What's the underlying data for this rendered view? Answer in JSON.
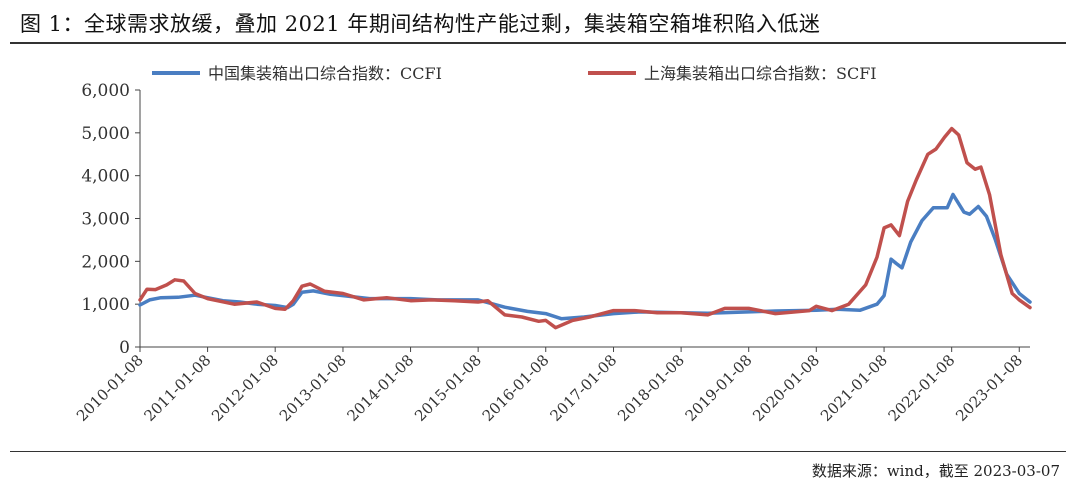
{
  "title": "图 1：全球需求放缓，叠加 2021 年期间结构性产能过剩，集装箱空箱堆积陷入低迷",
  "source": "数据来源：wind，截至 2023-03-07",
  "chart_data": {
    "type": "line",
    "title": "",
    "xlabel": "",
    "ylabel": "",
    "ylim": [
      0,
      6000
    ],
    "yticks": [
      0,
      1000,
      2000,
      3000,
      4000,
      5000,
      6000
    ],
    "ytick_labels": [
      "0",
      "1,000",
      "2,000",
      "3,000",
      "4,000",
      "5,000",
      "6,000"
    ],
    "xticks": [
      "2010-01-08",
      "2011-01-08",
      "2012-01-08",
      "2013-01-08",
      "2014-01-08",
      "2015-01-08",
      "2016-01-08",
      "2017-01-08",
      "2018-01-08",
      "2019-01-08",
      "2020-01-08",
      "2021-01-08",
      "2022-01-08",
      "2023-01-08"
    ],
    "x_range": [
      "2010-01-08",
      "2023-03-07"
    ],
    "grid": false,
    "legend_position": "top",
    "series": [
      {
        "name": "中国集装箱出口综合指数：CCFI",
        "color": "#4a7ec2",
        "points": [
          [
            "2010-01-08",
            980
          ],
          [
            "2010-03-01",
            1100
          ],
          [
            "2010-05-01",
            1150
          ],
          [
            "2010-08-01",
            1160
          ],
          [
            "2010-11-01",
            1210
          ],
          [
            "2011-01-08",
            1150
          ],
          [
            "2011-04-01",
            1080
          ],
          [
            "2011-07-01",
            1050
          ],
          [
            "2011-10-01",
            1000
          ],
          [
            "2012-01-08",
            970
          ],
          [
            "2012-03-15",
            920
          ],
          [
            "2012-04-15",
            1000
          ],
          [
            "2012-06-01",
            1280
          ],
          [
            "2012-08-01",
            1310
          ],
          [
            "2012-11-01",
            1230
          ],
          [
            "2013-01-08",
            1200
          ],
          [
            "2013-06-01",
            1130
          ],
          [
            "2014-01-08",
            1130
          ],
          [
            "2014-06-01",
            1100
          ],
          [
            "2015-01-08",
            1100
          ],
          [
            "2015-06-01",
            930
          ],
          [
            "2015-10-01",
            830
          ],
          [
            "2016-01-08",
            780
          ],
          [
            "2016-04-01",
            660
          ],
          [
            "2016-08-01",
            700
          ],
          [
            "2017-01-08",
            780
          ],
          [
            "2017-06-01",
            820
          ],
          [
            "2018-01-08",
            800
          ],
          [
            "2018-06-01",
            790
          ],
          [
            "2019-01-08",
            820
          ],
          [
            "2019-06-01",
            840
          ],
          [
            "2020-01-08",
            860
          ],
          [
            "2020-05-01",
            880
          ],
          [
            "2020-09-01",
            860
          ],
          [
            "2020-12-01",
            1000
          ],
          [
            "2021-01-08",
            1200
          ],
          [
            "2021-02-15",
            2050
          ],
          [
            "2021-03-15",
            1950
          ],
          [
            "2021-04-15",
            1850
          ],
          [
            "2021-06-01",
            2450
          ],
          [
            "2021-08-01",
            2950
          ],
          [
            "2021-10-01",
            3250
          ],
          [
            "2021-12-15",
            3250
          ],
          [
            "2022-01-15",
            3560
          ],
          [
            "2022-03-15",
            3150
          ],
          [
            "2022-04-15",
            3100
          ],
          [
            "2022-06-01",
            3280
          ],
          [
            "2022-07-15",
            3050
          ],
          [
            "2022-09-01",
            2500
          ],
          [
            "2022-11-01",
            1700
          ],
          [
            "2023-01-08",
            1250
          ],
          [
            "2023-03-07",
            1050
          ]
        ]
      },
      {
        "name": "上海集装箱出口综合指数：SCFI",
        "color": "#c0504d",
        "points": [
          [
            "2010-01-08",
            1100
          ],
          [
            "2010-02-15",
            1350
          ],
          [
            "2010-04-01",
            1340
          ],
          [
            "2010-06-01",
            1450
          ],
          [
            "2010-07-15",
            1570
          ],
          [
            "2010-09-01",
            1540
          ],
          [
            "2010-11-01",
            1250
          ],
          [
            "2011-01-08",
            1130
          ],
          [
            "2011-06-01",
            1000
          ],
          [
            "2011-10-01",
            1050
          ],
          [
            "2012-01-08",
            900
          ],
          [
            "2012-03-01",
            880
          ],
          [
            "2012-04-15",
            1080
          ],
          [
            "2012-06-01",
            1420
          ],
          [
            "2012-07-15",
            1470
          ],
          [
            "2012-10-01",
            1300
          ],
          [
            "2013-01-08",
            1250
          ],
          [
            "2013-05-01",
            1100
          ],
          [
            "2013-09-01",
            1150
          ],
          [
            "2014-01-08",
            1080
          ],
          [
            "2014-05-01",
            1100
          ],
          [
            "2014-09-01",
            1080
          ],
          [
            "2015-01-08",
            1050
          ],
          [
            "2015-03-01",
            1080
          ],
          [
            "2015-06-01",
            750
          ],
          [
            "2015-09-01",
            700
          ],
          [
            "2015-12-01",
            600
          ],
          [
            "2016-01-08",
            620
          ],
          [
            "2016-03-01",
            450
          ],
          [
            "2016-06-01",
            620
          ],
          [
            "2016-09-01",
            700
          ],
          [
            "2017-01-08",
            850
          ],
          [
            "2017-05-01",
            850
          ],
          [
            "2017-09-01",
            800
          ],
          [
            "2018-01-08",
            800
          ],
          [
            "2018-06-01",
            750
          ],
          [
            "2018-09-01",
            900
          ],
          [
            "2019-01-08",
            900
          ],
          [
            "2019-06-01",
            780
          ],
          [
            "2019-12-01",
            850
          ],
          [
            "2020-01-08",
            950
          ],
          [
            "2020-04-01",
            850
          ],
          [
            "2020-07-01",
            1000
          ],
          [
            "2020-10-01",
            1450
          ],
          [
            "2020-12-01",
            2100
          ],
          [
            "2021-01-08",
            2780
          ],
          [
            "2021-02-15",
            2850
          ],
          [
            "2021-04-01",
            2600
          ],
          [
            "2021-05-15",
            3400
          ],
          [
            "2021-07-01",
            3900
          ],
          [
            "2021-09-01",
            4500
          ],
          [
            "2021-10-15",
            4620
          ],
          [
            "2021-12-01",
            4900
          ],
          [
            "2022-01-08",
            5100
          ],
          [
            "2022-02-15",
            4950
          ],
          [
            "2022-04-01",
            4300
          ],
          [
            "2022-05-15",
            4150
          ],
          [
            "2022-06-15",
            4200
          ],
          [
            "2022-08-01",
            3550
          ],
          [
            "2022-10-01",
            2150
          ],
          [
            "2022-12-01",
            1250
          ],
          [
            "2023-01-08",
            1100
          ],
          [
            "2023-03-07",
            920
          ]
        ]
      }
    ]
  }
}
